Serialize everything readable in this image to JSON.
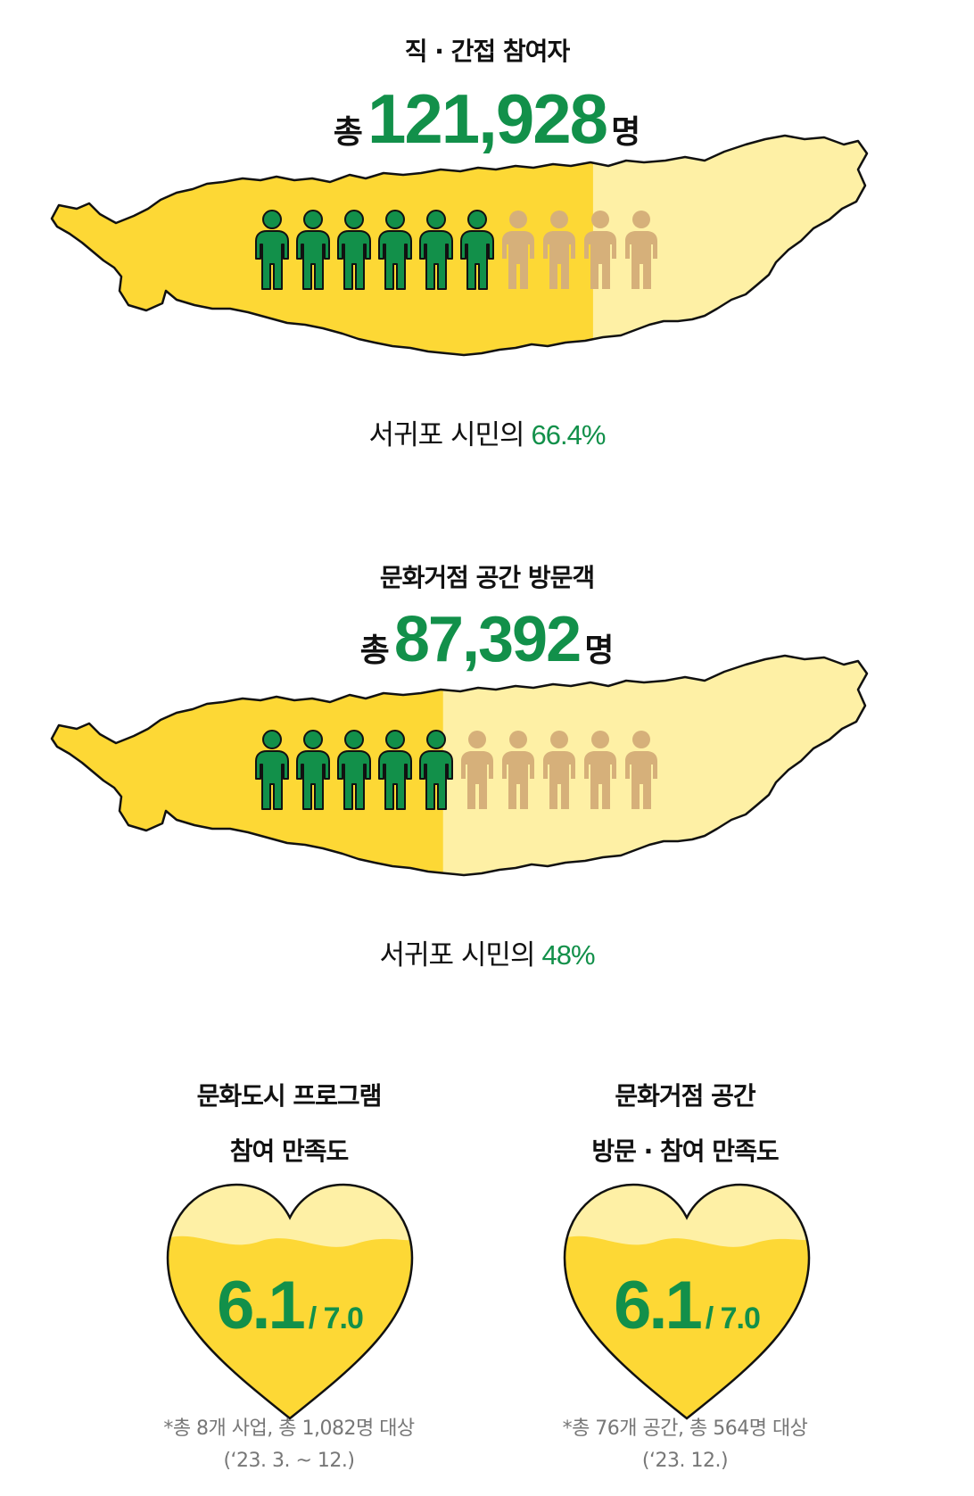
{
  "participants": {
    "title": "직 · 간접 참여자",
    "prefix": "총",
    "number": "121,928",
    "suffix": "명",
    "caption": "서귀포 시민의",
    "percent_text": "66.4%",
    "percent_value": 66.4,
    "icons_total": 10,
    "icons_filled": 6
  },
  "visitors": {
    "title": "문화거점 공간 방문객",
    "prefix": "총",
    "number": "87,392",
    "suffix": "명",
    "caption": "서귀포 시민의",
    "percent_text": "48%",
    "percent_value": 48,
    "icons_total": 10,
    "icons_filled": 5
  },
  "satisfaction": [
    {
      "title_line1": "문화도시 프로그램",
      "title_line2": "참여 만족도",
      "score": "6.1",
      "max": "/ 7.0",
      "note_line1": "*총 8개 사업, 총 1,082명 대상",
      "note_line2": "(‘23. 3. ~ 12.)"
    },
    {
      "title_line1": "문화거점 공간",
      "title_line2": "방문 · 참여 만족도",
      "score": "6.1",
      "max": "/ 7.0",
      "note_line1": "*총 76개 공간, 총 564명 대상",
      "note_line2": "(‘23. 12.)"
    }
  ],
  "colors": {
    "accent_green": "#12904a",
    "map_fill": "#fdd835",
    "map_light": "#fef0a5",
    "person_filled": "#12904a",
    "person_empty": "#d6b07a",
    "heart_fill": "#fdd835",
    "heart_light": "#fef0a5"
  },
  "icons": [
    "person-icon",
    "heart-icon",
    "island-map-icon"
  ]
}
